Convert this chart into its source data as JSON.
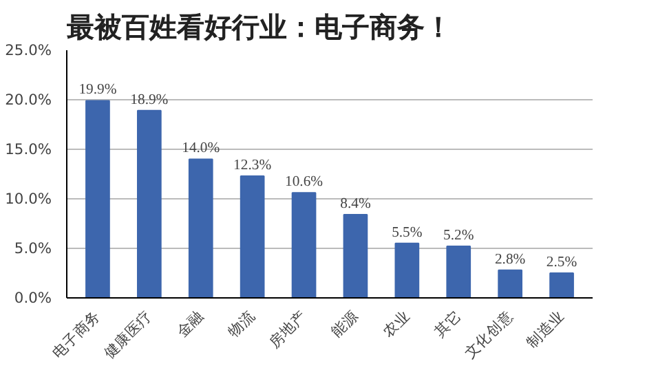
{
  "chart_data": {
    "type": "bar",
    "title": "最被百姓看好行业：电子商务！",
    "categories": [
      "电子商务",
      "健康医疗",
      "金融",
      "物流",
      "房地产",
      "能源",
      "农业",
      "其它",
      "文化创意",
      "制造业"
    ],
    "values": [
      19.9,
      18.9,
      14.0,
      12.3,
      10.6,
      8.4,
      5.5,
      5.2,
      2.8,
      2.5
    ],
    "value_labels": [
      "19.9%",
      "18.9%",
      "14.0%",
      "12.3%",
      "10.6%",
      "8.4%",
      "5.5%",
      "5.2%",
      "2.8%",
      "2.5%"
    ],
    "color": "#3d66ad",
    "ylim": [
      0,
      25
    ],
    "yticks": [
      {
        "value": 0,
        "label": "0.0%"
      },
      {
        "value": 5,
        "label": "5.0%"
      },
      {
        "value": 10,
        "label": "10.0%"
      },
      {
        "value": 15,
        "label": "15.0%"
      },
      {
        "value": 20,
        "label": "20.0%"
      },
      {
        "value": 25,
        "label": "25.0%"
      }
    ],
    "grid": "y"
  }
}
